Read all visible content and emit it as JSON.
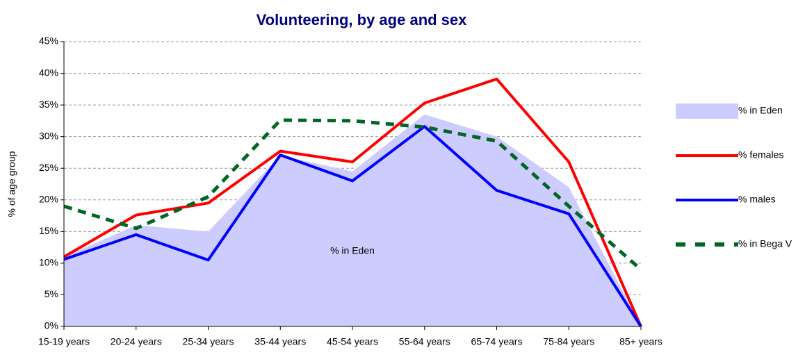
{
  "chart_data": {
    "type": "line",
    "title": "Volunteering, by age and sex",
    "y_label": "% of age group",
    "annotation": "% in Eden",
    "categories": [
      "15-19 years",
      "20-24 years",
      "25-34 years",
      "35-44 years",
      "45-54 years",
      "55-64 years",
      "65-74 years",
      "75-84 years",
      "85+ years"
    ],
    "series": [
      {
        "name": "% in Eden",
        "color": "#ccccff",
        "style": "area",
        "values": [
          11,
          16,
          15,
          27,
          24.5,
          33.5,
          30,
          22,
          0
        ]
      },
      {
        "name": "% females",
        "color": "#ff0000",
        "style": "solid",
        "values": [
          11,
          17.6,
          19.5,
          27.7,
          26,
          35.3,
          39.1,
          26,
          0
        ]
      },
      {
        "name": "% males",
        "color": "#0000ff",
        "style": "solid",
        "values": [
          10.6,
          14.5,
          10.5,
          27.1,
          23,
          31.6,
          21.5,
          17.8,
          0
        ]
      },
      {
        "name": "% in Bega V",
        "color": "#006622",
        "style": "dashed",
        "values": [
          19,
          15.5,
          20.5,
          32.6,
          32.5,
          31.5,
          29.3,
          19,
          9
        ]
      }
    ],
    "ylim": [
      0,
      45
    ],
    "yticks": [
      {
        "value": 0,
        "label": "0%"
      },
      {
        "value": 5,
        "label": "5%"
      },
      {
        "value": 10,
        "label": "10%"
      },
      {
        "value": 15,
        "label": "15%"
      },
      {
        "value": 20,
        "label": "20%"
      },
      {
        "value": 25,
        "label": "25%"
      },
      {
        "value": 30,
        "label": "30%"
      },
      {
        "value": 35,
        "label": "35%"
      },
      {
        "value": 40,
        "label": "40%"
      },
      {
        "value": 45,
        "label": "45%"
      }
    ],
    "grid": true,
    "legend": "right"
  }
}
